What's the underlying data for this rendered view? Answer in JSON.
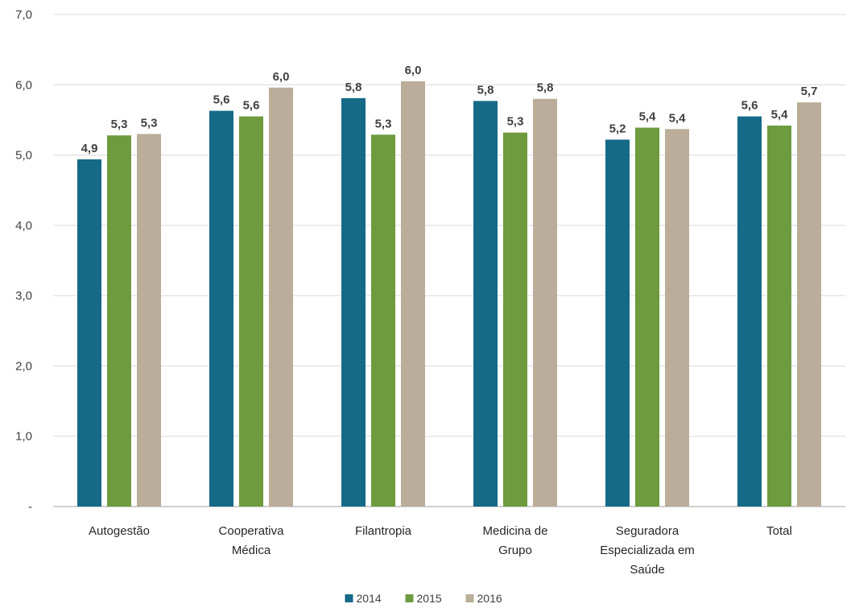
{
  "chart_data": {
    "type": "bar",
    "categories": [
      [
        "Autogestão"
      ],
      [
        "Cooperativa",
        "Médica"
      ],
      [
        "Filantropia"
      ],
      [
        "Medicina de",
        "Grupo"
      ],
      [
        "Seguradora",
        "Especializada em",
        "Saúde"
      ],
      [
        "Total"
      ]
    ],
    "series": [
      {
        "name": "2014",
        "color": "#156a87",
        "values": [
          4.94,
          5.63,
          5.81,
          5.77,
          5.22,
          5.55
        ],
        "labels": [
          "4,9",
          "5,6",
          "5,8",
          "5,8",
          "5,2",
          "5,6"
        ]
      },
      {
        "name": "2015",
        "color": "#6d9b3e",
        "values": [
          5.28,
          5.55,
          5.29,
          5.32,
          5.39,
          5.42
        ],
        "labels": [
          "5,3",
          "5,6",
          "5,3",
          "5,3",
          "5,4",
          "5,4"
        ]
      },
      {
        "name": "2016",
        "color": "#baad99",
        "values": [
          5.3,
          5.96,
          6.05,
          5.8,
          5.37,
          5.75
        ],
        "labels": [
          "5,3",
          "6,0",
          "6,0",
          "5,8",
          "5,4",
          "5,7"
        ]
      }
    ],
    "yticks": [
      0,
      1,
      2,
      3,
      4,
      5,
      6,
      7
    ],
    "ytick_labels": [
      "-",
      "1,0",
      "2,0",
      "3,0",
      "4,0",
      "5,0",
      "6,0",
      "7,0"
    ],
    "ylim": [
      0,
      7
    ],
    "grid": true,
    "legend_position": "bottom",
    "title": "",
    "xlabel": "",
    "ylabel": ""
  }
}
